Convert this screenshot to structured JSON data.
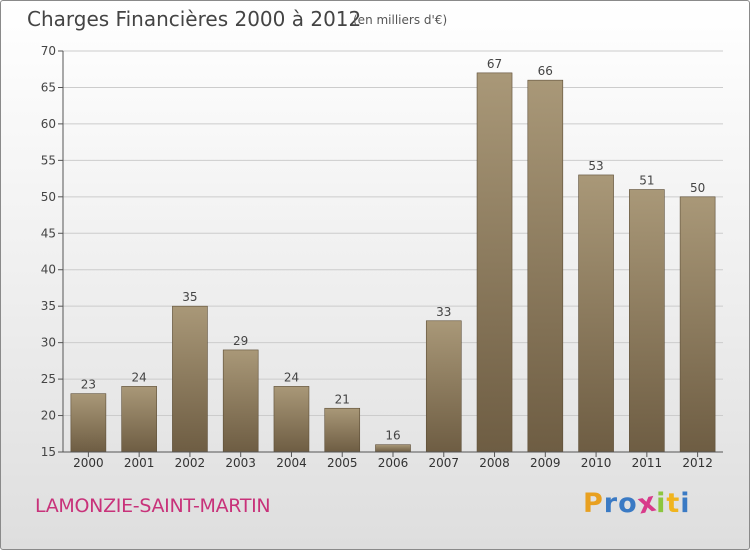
{
  "header": {
    "title": "Charges Financières 2000 à 2012",
    "unit_note": "(en milliers d'€)"
  },
  "footer": {
    "place_name": "LAMONZIE-SAINT-MARTIN"
  },
  "logo": {
    "text": "Proxiti",
    "letters": [
      "P",
      "r",
      "o",
      "x",
      "i",
      "t",
      "i"
    ],
    "colors": [
      "#e8a020",
      "#3a7ac4",
      "#3a7ac4",
      "#d83a8a",
      "#8cc63f",
      "#f0b41e",
      "#3a7ac4"
    ]
  },
  "colors": {
    "bar_top": "#a99878",
    "bar_bottom": "#6e5d43",
    "bar_edge": "#5c4d36",
    "grid": "#cccccc"
  },
  "chart_data": {
    "type": "bar",
    "title": "Charges Financières 2000 à 2012",
    "subtitle": "(en milliers d'€)",
    "xlabel": "",
    "ylabel": "",
    "categories": [
      "2000",
      "2001",
      "2002",
      "2003",
      "2004",
      "2005",
      "2006",
      "2007",
      "2008",
      "2009",
      "2010",
      "2011",
      "2012"
    ],
    "values": [
      23,
      24,
      35,
      29,
      24,
      21,
      16,
      33,
      67,
      66,
      53,
      51,
      50
    ],
    "ylim": [
      15,
      70
    ],
    "yticks": [
      15,
      20,
      25,
      30,
      35,
      40,
      45,
      50,
      55,
      60,
      65,
      70
    ],
    "grid": true,
    "data_labels": true
  }
}
